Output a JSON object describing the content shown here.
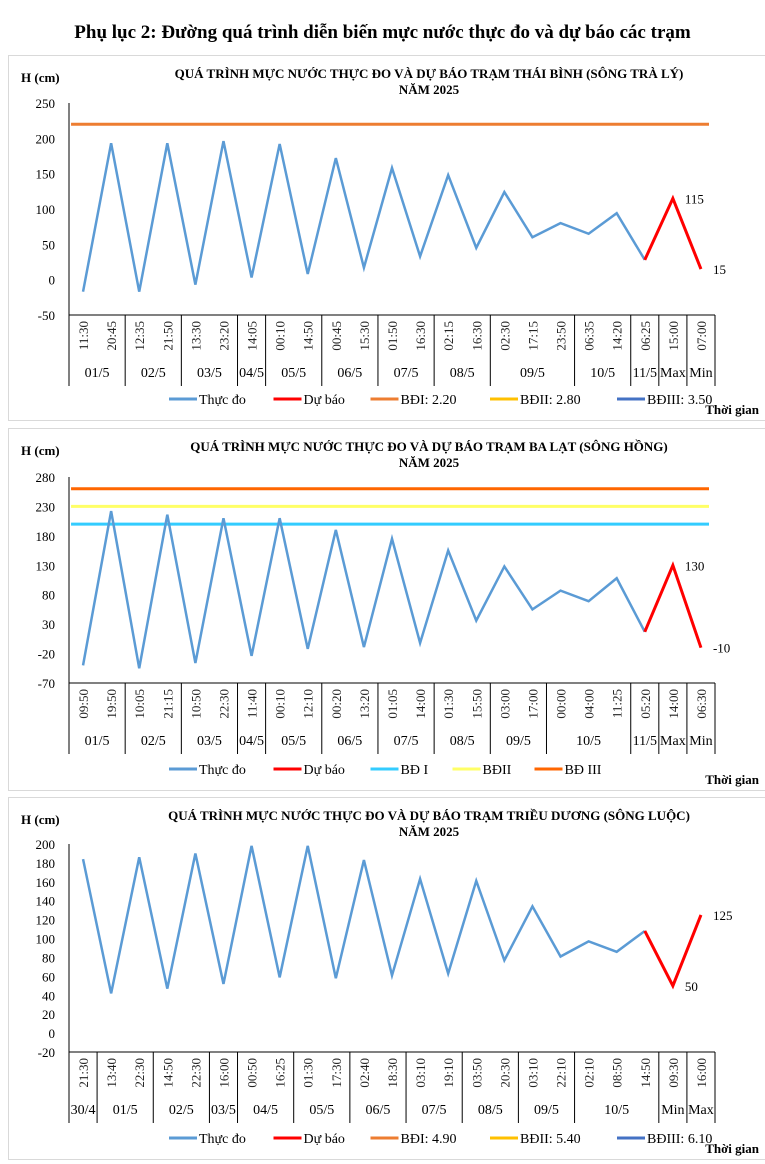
{
  "page_title": "Phụ lục 2: Đường quá trình diễn biến mực nước thực đo và dự báo các trạm",
  "chart_data": [
    {
      "type": "line",
      "title": "QUÁ TRÌNH MỰC NƯỚC THỰC ĐO VÀ DỰ BÁO TRẠM THÁI BÌNH (SÔNG TRÀ LÝ)",
      "subtitle": "NĂM 2025",
      "ylabel": "H (cm)",
      "xlabel": "Thời gian",
      "ylim": [
        -50,
        250
      ],
      "yticks": [
        -50,
        0,
        50,
        100,
        150,
        200,
        250
      ],
      "categories": [
        "11:30",
        "20:45",
        "12:35",
        "21:50",
        "13:30",
        "23:20",
        "14:05",
        "00:10",
        "14:50",
        "00:45",
        "15:30",
        "01:50",
        "16:30",
        "02:15",
        "16:30",
        "02:30",
        "17:15",
        "23:50",
        "06:35",
        "14:20",
        "06:25",
        "15:00",
        "07:00"
      ],
      "groups": [
        {
          "label": "01/5",
          "count": 2
        },
        {
          "label": "02/5",
          "count": 2
        },
        {
          "label": "03/5",
          "count": 2
        },
        {
          "label": "04/5",
          "count": 1
        },
        {
          "label": "05/5",
          "count": 2
        },
        {
          "label": "06/5",
          "count": 2
        },
        {
          "label": "07/5",
          "count": 2
        },
        {
          "label": "08/5",
          "count": 2
        },
        {
          "label": "09/5",
          "count": 3
        },
        {
          "label": "10/5",
          "count": 2
        },
        {
          "label": "11/5",
          "count": 1
        },
        {
          "label": "Max",
          "count": 1
        },
        {
          "label": "Min",
          "count": 1
        }
      ],
      "series": [
        {
          "name": "Thực đo",
          "color": "#5b9bd5",
          "values": [
            -17,
            193,
            -17,
            193,
            -7,
            196,
            3,
            192,
            8,
            172,
            17,
            158,
            33,
            148,
            45,
            124,
            60,
            80,
            65,
            94,
            28,
            null,
            null
          ]
        },
        {
          "name": "Dự báo",
          "color": "#ff0000",
          "values": [
            null,
            null,
            null,
            null,
            null,
            null,
            null,
            null,
            null,
            null,
            null,
            null,
            null,
            null,
            null,
            null,
            null,
            null,
            null,
            null,
            28,
            115,
            15
          ],
          "data_labels": {
            "21": "115",
            "22": "15"
          }
        }
      ],
      "thresholds": [
        {
          "name": "BĐI: 2.20",
          "value": 220,
          "color": "#ed7d31"
        },
        {
          "name": "BĐII: 2.80",
          "value": 280,
          "color": "#ffc000"
        },
        {
          "name": "BĐIII: 3.50",
          "value": 350,
          "color": "#4472c4"
        }
      ],
      "legend": "bottom",
      "grid": false
    },
    {
      "type": "line",
      "title": "QUÁ TRÌNH MỰC NƯỚC THỰC ĐO VÀ DỰ BÁO TRẠM BA LẠT (SÔNG HỒNG)",
      "subtitle": "NĂM 2025",
      "ylabel": "H (cm)",
      "xlabel": "Thời gian",
      "ylim": [
        -70,
        280
      ],
      "yticks": [
        -70,
        -20,
        30,
        80,
        130,
        180,
        230,
        280
      ],
      "categories": [
        "09:50",
        "19:50",
        "10:05",
        "21:15",
        "10:50",
        "22:30",
        "11:40",
        "00:10",
        "12:10",
        "00:20",
        "13:20",
        "01:05",
        "14:00",
        "01:30",
        "15:50",
        "03:00",
        "17:00",
        "00:00",
        "04:00",
        "11:25",
        "05:20",
        "14:00",
        "06:30"
      ],
      "groups": [
        {
          "label": "01/5",
          "count": 2
        },
        {
          "label": "02/5",
          "count": 2
        },
        {
          "label": "03/5",
          "count": 2
        },
        {
          "label": "04/5",
          "count": 1
        },
        {
          "label": "05/5",
          "count": 2
        },
        {
          "label": "06/5",
          "count": 2
        },
        {
          "label": "07/5",
          "count": 2
        },
        {
          "label": "08/5",
          "count": 2
        },
        {
          "label": "09/5",
          "count": 2
        },
        {
          "label": "10/5",
          "count": 3
        },
        {
          "label": "11/5",
          "count": 1
        },
        {
          "label": "Max",
          "count": 1
        },
        {
          "label": "Min",
          "count": 1
        }
      ],
      "series": [
        {
          "name": "Thực đo",
          "color": "#5b9bd5",
          "values": [
            -40,
            222,
            -45,
            216,
            -36,
            210,
            -24,
            210,
            -12,
            190,
            -9,
            175,
            -2,
            155,
            36,
            128,
            55,
            87,
            69,
            108,
            17,
            null,
            null
          ]
        },
        {
          "name": "Dự báo",
          "color": "#ff0000",
          "values": [
            null,
            null,
            null,
            null,
            null,
            null,
            null,
            null,
            null,
            null,
            null,
            null,
            null,
            null,
            null,
            null,
            null,
            null,
            null,
            null,
            17,
            130,
            -10
          ],
          "data_labels": {
            "21": "130",
            "22": "-10"
          }
        }
      ],
      "thresholds": [
        {
          "name": "BĐ I",
          "value": 200,
          "color": "#33ccff"
        },
        {
          "name": "BĐII",
          "value": 230,
          "color": "#ffff66"
        },
        {
          "name": "BĐ III",
          "value": 260,
          "color": "#ff6600"
        }
      ],
      "legend": "bottom",
      "grid": false
    },
    {
      "type": "line",
      "title": "QUÁ TRÌNH MỰC NƯỚC THỰC ĐO VÀ DỰ BÁO TRẠM TRIỀU DƯƠNG  (SÔNG LUỘC)",
      "subtitle": "NĂM 2025",
      "ylabel": "H (cm)",
      "xlabel": "Thời gian",
      "ylim": [
        -20,
        200
      ],
      "yticks": [
        -20,
        0,
        20,
        40,
        60,
        80,
        100,
        120,
        140,
        160,
        180,
        200
      ],
      "categories": [
        "21:30",
        "13:40",
        "22:30",
        "14:50",
        "22:30",
        "16:00",
        "00:50",
        "16:25",
        "01:30",
        "17:30",
        "02:40",
        "18:30",
        "03:10",
        "19:10",
        "03:50",
        "20:30",
        "03:10",
        "22:10",
        "02:10",
        "08:50",
        "14:50",
        "09:30",
        "16:00"
      ],
      "groups": [
        {
          "label": "30/4",
          "count": 1
        },
        {
          "label": "01/5",
          "count": 2
        },
        {
          "label": "02/5",
          "count": 2
        },
        {
          "label": "03/5",
          "count": 1
        },
        {
          "label": "04/5",
          "count": 2
        },
        {
          "label": "05/5",
          "count": 2
        },
        {
          "label": "06/5",
          "count": 2
        },
        {
          "label": "07/5",
          "count": 2
        },
        {
          "label": "08/5",
          "count": 2
        },
        {
          "label": "09/5",
          "count": 2
        },
        {
          "label": "10/5",
          "count": 3
        },
        {
          "label": "Min",
          "count": 1
        },
        {
          "label": "Max",
          "count": 1
        }
      ],
      "series": [
        {
          "name": "Thực đo",
          "color": "#5b9bd5",
          "values": [
            184,
            42,
            186,
            47,
            190,
            52,
            198,
            59,
            198,
            58,
            183,
            61,
            163,
            63,
            161,
            77,
            134,
            81,
            97,
            86,
            108,
            null,
            null
          ]
        },
        {
          "name": "Dự báo",
          "color": "#ff0000",
          "values": [
            null,
            null,
            null,
            null,
            null,
            null,
            null,
            null,
            null,
            null,
            null,
            null,
            null,
            null,
            null,
            null,
            null,
            null,
            null,
            null,
            108,
            50,
            125
          ],
          "data_labels": {
            "21": "50",
            "22": "125"
          }
        }
      ],
      "thresholds": [
        {
          "name": "BĐI: 4.90",
          "value": 490,
          "color": "#ed7d31"
        },
        {
          "name": "BĐII: 5.40",
          "value": 540,
          "color": "#ffc000"
        },
        {
          "name": "BĐIII: 6.10",
          "value": 610,
          "color": "#4472c4"
        }
      ],
      "legend": "bottom",
      "grid": false
    }
  ]
}
